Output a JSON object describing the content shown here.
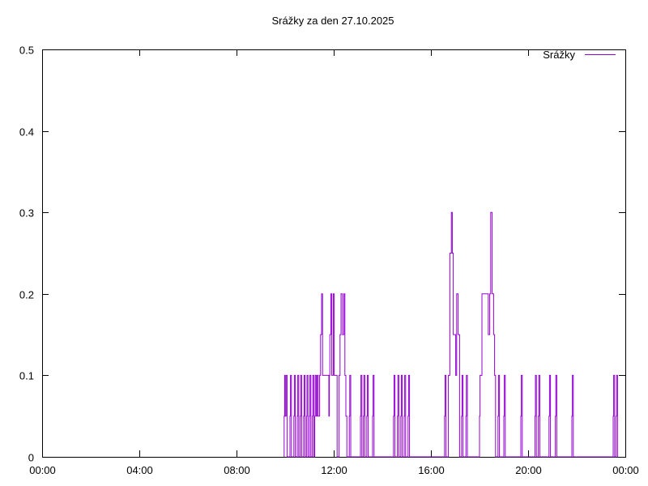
{
  "chart_data": {
    "type": "line",
    "title": "Srážky za den 27.10.2025",
    "xlabel": "",
    "ylabel": "",
    "x_unit": "time of day (hours)",
    "xlim": [
      0,
      24
    ],
    "ylim": [
      0,
      0.5
    ],
    "x_ticks": [
      0,
      4,
      8,
      12,
      16,
      20,
      24
    ],
    "x_tick_labels": [
      "00:00",
      "04:00",
      "08:00",
      "12:00",
      "16:00",
      "20:00",
      "00:00"
    ],
    "y_ticks": [
      0,
      0.1,
      0.2,
      0.3,
      0.4,
      0.5
    ],
    "y_tick_labels": [
      "0",
      "0.1",
      "0.2",
      "0.3",
      "0.4",
      "0.5"
    ],
    "grid": false,
    "legend_position": "top-right",
    "series": [
      {
        "name": "Srážky",
        "color": "#9400d3",
        "points": [
          [
            9.96,
            0.05
          ],
          [
            9.98,
            0.1
          ],
          [
            10.0,
            0.05
          ],
          [
            10.04,
            0.1
          ],
          [
            10.08,
            0
          ],
          [
            10.2,
            0.05
          ],
          [
            10.22,
            0.1
          ],
          [
            10.26,
            0
          ],
          [
            10.36,
            0.05
          ],
          [
            10.38,
            0.1
          ],
          [
            10.42,
            0
          ],
          [
            10.5,
            0.05
          ],
          [
            10.52,
            0.1
          ],
          [
            10.56,
            0
          ],
          [
            10.62,
            0.05
          ],
          [
            10.64,
            0.1
          ],
          [
            10.68,
            0
          ],
          [
            10.76,
            0.05
          ],
          [
            10.78,
            0.1
          ],
          [
            10.82,
            0
          ],
          [
            10.88,
            0.05
          ],
          [
            10.9,
            0.1
          ],
          [
            10.94,
            0
          ],
          [
            11.0,
            0.05
          ],
          [
            11.02,
            0.1
          ],
          [
            11.06,
            0
          ],
          [
            11.12,
            0.05
          ],
          [
            11.14,
            0.1
          ],
          [
            11.18,
            0
          ],
          [
            11.22,
            0.05
          ],
          [
            11.24,
            0.1
          ],
          [
            11.28,
            0.05
          ],
          [
            11.32,
            0.1
          ],
          [
            11.36,
            0.05
          ],
          [
            11.42,
            0.1
          ],
          [
            11.46,
            0.15
          ],
          [
            11.5,
            0.2
          ],
          [
            11.54,
            0.1
          ],
          [
            11.8,
            0.05
          ],
          [
            11.82,
            0.1
          ],
          [
            11.84,
            0.15
          ],
          [
            11.88,
            0.2
          ],
          [
            11.92,
            0.1
          ],
          [
            11.98,
            0.2
          ],
          [
            12.02,
            0.1
          ],
          [
            12.14,
            0
          ],
          [
            12.22,
            0.1
          ],
          [
            12.26,
            0.15
          ],
          [
            12.3,
            0.2
          ],
          [
            12.36,
            0.15
          ],
          [
            12.42,
            0.2
          ],
          [
            12.46,
            0.1
          ],
          [
            12.5,
            0.05
          ],
          [
            12.54,
            0
          ],
          [
            12.64,
            0.05
          ],
          [
            12.66,
            0.1
          ],
          [
            12.7,
            0
          ],
          [
            13.1,
            0.05
          ],
          [
            13.12,
            0.1
          ],
          [
            13.16,
            0
          ],
          [
            13.22,
            0.05
          ],
          [
            13.24,
            0.1
          ],
          [
            13.28,
            0
          ],
          [
            13.36,
            0.05
          ],
          [
            13.38,
            0.1
          ],
          [
            13.42,
            0
          ],
          [
            13.6,
            0.05
          ],
          [
            13.62,
            0.1
          ],
          [
            13.66,
            0
          ],
          [
            14.46,
            0.05
          ],
          [
            14.48,
            0.1
          ],
          [
            14.52,
            0
          ],
          [
            14.62,
            0.05
          ],
          [
            14.64,
            0.1
          ],
          [
            14.68,
            0
          ],
          [
            14.76,
            0.05
          ],
          [
            14.78,
            0.1
          ],
          [
            14.82,
            0
          ],
          [
            14.9,
            0.05
          ],
          [
            14.92,
            0.1
          ],
          [
            14.96,
            0
          ],
          [
            15.06,
            0.05
          ],
          [
            15.08,
            0.1
          ],
          [
            15.12,
            0
          ],
          [
            16.56,
            0.05
          ],
          [
            16.58,
            0.1
          ],
          [
            16.62,
            0
          ],
          [
            16.72,
            0.1
          ],
          [
            16.78,
            0.25
          ],
          [
            16.84,
            0.3
          ],
          [
            16.88,
            0.25
          ],
          [
            16.92,
            0.15
          ],
          [
            17.02,
            0.1
          ],
          [
            17.06,
            0.2
          ],
          [
            17.12,
            0.15
          ],
          [
            17.18,
            0
          ],
          [
            17.26,
            0.05
          ],
          [
            17.28,
            0.1
          ],
          [
            17.32,
            0
          ],
          [
            17.44,
            0.05
          ],
          [
            17.46,
            0.1
          ],
          [
            17.5,
            0
          ],
          [
            18.0,
            0.05
          ],
          [
            18.02,
            0.1
          ],
          [
            18.1,
            0.2
          ],
          [
            18.28,
            0.2
          ],
          [
            18.36,
            0.15
          ],
          [
            18.42,
            0.2
          ],
          [
            18.46,
            0.3
          ],
          [
            18.52,
            0.2
          ],
          [
            18.58,
            0.15
          ],
          [
            18.62,
            0.1
          ],
          [
            18.66,
            0
          ],
          [
            18.76,
            0.05
          ],
          [
            18.78,
            0.1
          ],
          [
            18.82,
            0
          ],
          [
            19.0,
            0.05
          ],
          [
            19.02,
            0.1
          ],
          [
            19.06,
            0
          ],
          [
            19.7,
            0.05
          ],
          [
            19.72,
            0.1
          ],
          [
            19.76,
            0
          ],
          [
            20.28,
            0.05
          ],
          [
            20.3,
            0.1
          ],
          [
            20.34,
            0
          ],
          [
            20.42,
            0.05
          ],
          [
            20.44,
            0.1
          ],
          [
            20.48,
            0
          ],
          [
            20.86,
            0.05
          ],
          [
            20.88,
            0.1
          ],
          [
            20.92,
            0
          ],
          [
            21.12,
            0.05
          ],
          [
            21.14,
            0.1
          ],
          [
            21.18,
            0
          ],
          [
            21.8,
            0.05
          ],
          [
            21.82,
            0.1
          ],
          [
            21.86,
            0
          ],
          [
            23.5,
            0.05
          ],
          [
            23.52,
            0.1
          ],
          [
            23.56,
            0
          ],
          [
            23.62,
            0.05
          ],
          [
            23.64,
            0.1
          ],
          [
            23.68,
            0
          ]
        ]
      }
    ]
  }
}
